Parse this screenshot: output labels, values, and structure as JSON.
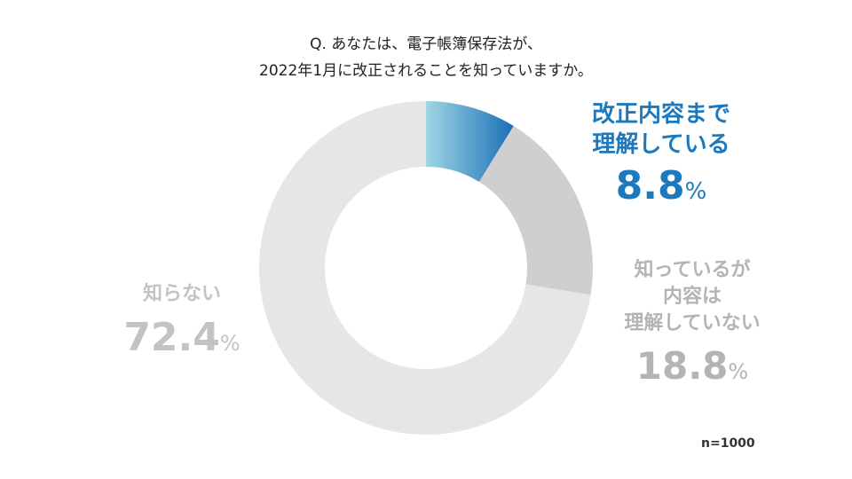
{
  "chart_data": {
    "type": "pie",
    "variant": "donut",
    "title_lines": [
      "Q. あなたは、電子帳簿保存法が、",
      "2022年1月に改正されることを知っていますか。"
    ],
    "sample_size": "n=1000",
    "slices": [
      {
        "label_lines": [
          "改正内容まで",
          "理解している"
        ],
        "value": 8.8,
        "value_text": "8.8",
        "unit": "%",
        "color_start": "#9fd6e4",
        "color_end": "#1b6fb7",
        "label_color": "#1c79bd"
      },
      {
        "label_lines": [
          "知っているが",
          "内容は",
          "理解していない"
        ],
        "value": 18.8,
        "value_text": "18.8",
        "unit": "%",
        "color": "#cfcfcf",
        "label_color": "#b4b4b4"
      },
      {
        "label_lines": [
          "知らない"
        ],
        "value": 72.4,
        "value_text": "72.4",
        "unit": "%",
        "color": "#e6e6e6",
        "label_color": "#c3c3c3"
      }
    ]
  }
}
